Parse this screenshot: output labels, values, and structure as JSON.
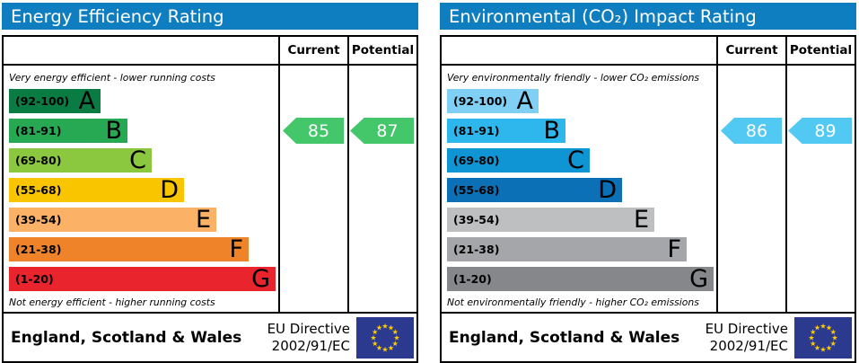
{
  "colors": {
    "header_bg": "#0f7ec0",
    "flag_bg": "#2b3a8f",
    "flag_stars": "#ffcc00",
    "border": "#000000"
  },
  "panels": [
    {
      "title": "Energy Efficiency Rating",
      "columns": {
        "current": "Current",
        "potential": "Potential"
      },
      "caption_top": "Very energy efficient - lower running costs",
      "caption_bottom": "Not energy efficient - higher running costs",
      "bands": [
        {
          "range": "(92-100)",
          "letter": "A",
          "color": "#0a7c43",
          "width_pct": 34
        },
        {
          "range": "(81-91)",
          "letter": "B",
          "color": "#27a954",
          "width_pct": 44
        },
        {
          "range": "(69-80)",
          "letter": "C",
          "color": "#8bc73f",
          "width_pct": 53
        },
        {
          "range": "(55-68)",
          "letter": "D",
          "color": "#f8c500",
          "width_pct": 65
        },
        {
          "range": "(39-54)",
          "letter": "E",
          "color": "#fbb267",
          "width_pct": 77
        },
        {
          "range": "(21-38)",
          "letter": "F",
          "color": "#ee8329",
          "width_pct": 89
        },
        {
          "range": "(1-20)",
          "letter": "G",
          "color": "#e9242d",
          "width_pct": 99
        }
      ],
      "current": {
        "value": "85",
        "color": "#44c76a",
        "row": 1
      },
      "potential": {
        "value": "87",
        "color": "#44c76a",
        "row": 1
      },
      "footer": {
        "region": "England, Scotland & Wales",
        "directive_line1": "EU Directive",
        "directive_line2": "2002/91/EC"
      }
    },
    {
      "title": "Environmental (CO₂) Impact Rating",
      "columns": {
        "current": "Current",
        "potential": "Potential"
      },
      "caption_top": "Very environmentally friendly - lower CO₂ emissions",
      "caption_bottom": "Not environmentally friendly - higher CO₂ emissions",
      "bands": [
        {
          "range": "(92-100)",
          "letter": "A",
          "color": "#80cff4",
          "width_pct": 34
        },
        {
          "range": "(81-91)",
          "letter": "B",
          "color": "#2eb7ec",
          "width_pct": 44
        },
        {
          "range": "(69-80)",
          "letter": "C",
          "color": "#0f95d4",
          "width_pct": 53
        },
        {
          "range": "(55-68)",
          "letter": "D",
          "color": "#0b70b5",
          "width_pct": 65
        },
        {
          "range": "(39-54)",
          "letter": "E",
          "color": "#bdbfc1",
          "width_pct": 77
        },
        {
          "range": "(21-38)",
          "letter": "F",
          "color": "#a4a6a9",
          "width_pct": 89
        },
        {
          "range": "(1-20)",
          "letter": "G",
          "color": "#85878a",
          "width_pct": 99
        }
      ],
      "current": {
        "value": "86",
        "color": "#52c9f3",
        "row": 1
      },
      "potential": {
        "value": "89",
        "color": "#52c9f3",
        "row": 1
      },
      "footer": {
        "region": "England, Scotland & Wales",
        "directive_line1": "EU Directive",
        "directive_line2": "2002/91/EC"
      }
    }
  ],
  "chart_data": [
    {
      "type": "bar",
      "title": "Energy Efficiency Rating",
      "categories": [
        "A",
        "B",
        "C",
        "D",
        "E",
        "F",
        "G"
      ],
      "band_ranges": [
        "92-100",
        "81-91",
        "69-80",
        "55-68",
        "39-54",
        "21-38",
        "1-20"
      ],
      "band_colors": [
        "#0a7c43",
        "#27a954",
        "#8bc73f",
        "#f8c500",
        "#fbb267",
        "#ee8329",
        "#e9242d"
      ],
      "series": [
        {
          "name": "Current",
          "values": [
            85
          ],
          "band": "B"
        },
        {
          "name": "Potential",
          "values": [
            87
          ],
          "band": "B"
        }
      ],
      "annotations": [
        "Very energy efficient - lower running costs",
        "Not energy efficient - higher running costs"
      ],
      "footer": "England, Scotland & Wales | EU Directive 2002/91/EC",
      "xlim": [
        1,
        100
      ],
      "legend": "column headers Current / Potential"
    },
    {
      "type": "bar",
      "title": "Environmental (CO₂) Impact Rating",
      "categories": [
        "A",
        "B",
        "C",
        "D",
        "E",
        "F",
        "G"
      ],
      "band_ranges": [
        "92-100",
        "81-91",
        "69-80",
        "55-68",
        "39-54",
        "21-38",
        "1-20"
      ],
      "band_colors": [
        "#80cff4",
        "#2eb7ec",
        "#0f95d4",
        "#0b70b5",
        "#bdbfc1",
        "#a4a6a9",
        "#85878a"
      ],
      "series": [
        {
          "name": "Current",
          "values": [
            86
          ],
          "band": "B"
        },
        {
          "name": "Potential",
          "values": [
            89
          ],
          "band": "B"
        }
      ],
      "annotations": [
        "Very environmentally friendly - lower CO₂ emissions",
        "Not environmentally friendly - higher CO₂ emissions"
      ],
      "footer": "England, Scotland & Wales | EU Directive 2002/91/EC",
      "xlim": [
        1,
        100
      ],
      "legend": "column headers Current / Potential"
    }
  ]
}
